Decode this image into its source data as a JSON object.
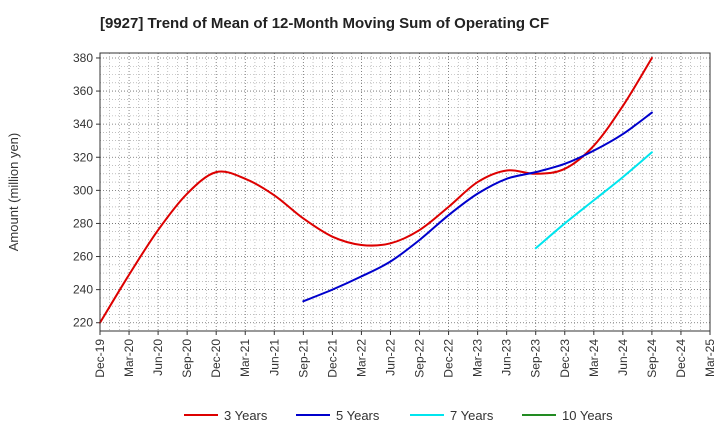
{
  "chart_data": {
    "type": "line",
    "title": "[9927]  Trend of Mean of 12-Month Moving Sum of Operating CF",
    "xlabel": "",
    "ylabel": "Amount (million yen)",
    "ylim": [
      215,
      383
    ],
    "y_ticks": [
      220,
      240,
      260,
      280,
      300,
      320,
      340,
      360,
      380
    ],
    "categories": [
      "Dec-19",
      "Mar-20",
      "Jun-20",
      "Sep-20",
      "Dec-20",
      "Mar-21",
      "Jun-21",
      "Sep-21",
      "Dec-21",
      "Mar-22",
      "Jun-22",
      "Sep-22",
      "Dec-22",
      "Mar-23",
      "Jun-23",
      "Sep-23",
      "Dec-23",
      "Mar-24",
      "Jun-24",
      "Sep-24",
      "Dec-24",
      "Mar-25"
    ],
    "grid": true,
    "legend_position": "bottom",
    "series": [
      {
        "name": "3 Years",
        "color": "#dd0000",
        "values": [
          220,
          249,
          276,
          298,
          311,
          307,
          297,
          283,
          272,
          267,
          268,
          276,
          290,
          305,
          312,
          310,
          313,
          327,
          351,
          380,
          null,
          null
        ]
      },
      {
        "name": "5 Years",
        "color": "#0000cc",
        "values": [
          null,
          null,
          null,
          null,
          null,
          null,
          null,
          233,
          240,
          248,
          257,
          270,
          285,
          298,
          307,
          311,
          316,
          324,
          334,
          347,
          null,
          null
        ]
      },
      {
        "name": "7 Years",
        "color": "#00e5ee",
        "values": [
          null,
          null,
          null,
          null,
          null,
          null,
          null,
          null,
          null,
          null,
          null,
          null,
          null,
          null,
          null,
          265,
          280,
          294,
          308,
          323,
          null,
          null
        ]
      },
      {
        "name": "10 Years",
        "color": "#228b22",
        "values": [
          null,
          null,
          null,
          null,
          null,
          null,
          null,
          null,
          null,
          null,
          null,
          null,
          null,
          null,
          null,
          null,
          null,
          null,
          null,
          null,
          null,
          null
        ]
      }
    ]
  }
}
